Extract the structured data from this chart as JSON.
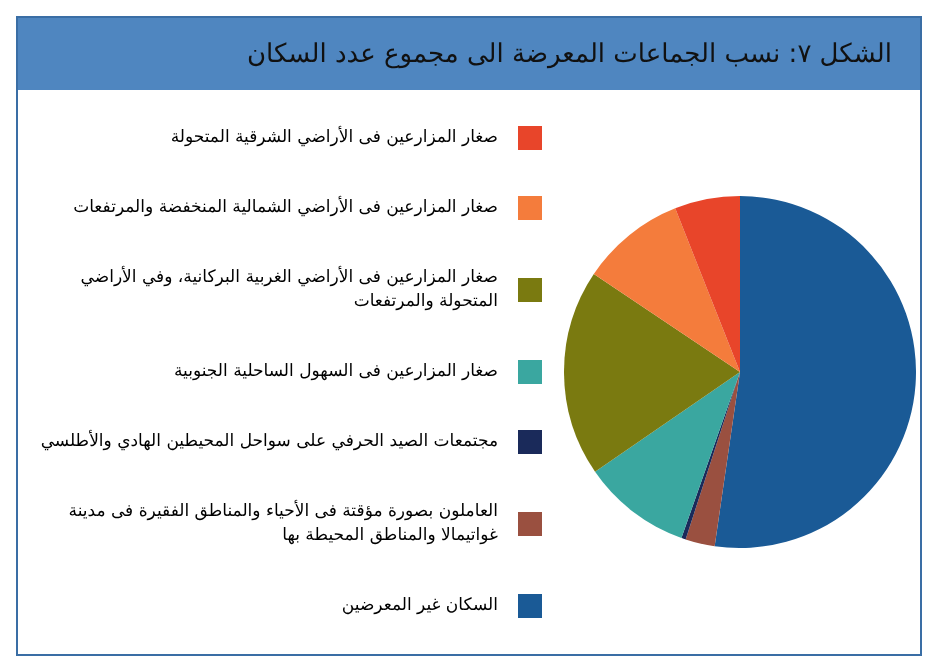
{
  "chart_data": {
    "type": "pie",
    "title": "الشكل ٧:   نسب الجماعات المعرضة الى مجموع عدد السكان",
    "legend": "left",
    "categories": [
      "صغار المزارعين فى الأراضي الشرقية المتحولة",
      "صغار المزارعين فى الأراضي الشمالية المنخفضة والمرتفعات",
      "صغار المزارعين فى الأراضي الغربية البركانية، وفي الأراضي المتحولة والمرتفعات",
      "صغار المزارعين فى السهول الساحلية الجنوبية",
      "مجتمعات الصيد الحرفي على سواحل المحيطين الهادي والأطلسي",
      "العاملون بصورة مؤقتة فى الأحياء والمناطق الفقيرة فى مدينة غواتيمالا والمناطق المحيطة بها",
      "السكان غير المعرضين"
    ],
    "values": [
      6,
      9.6,
      19,
      10,
      0.4,
      2.7,
      52.3
    ],
    "colors": [
      "#e8452a",
      "#f47c3c",
      "#7a7a10",
      "#3aa7a0",
      "#1a2a5a",
      "#9a5040",
      "#1a5a96"
    ]
  }
}
